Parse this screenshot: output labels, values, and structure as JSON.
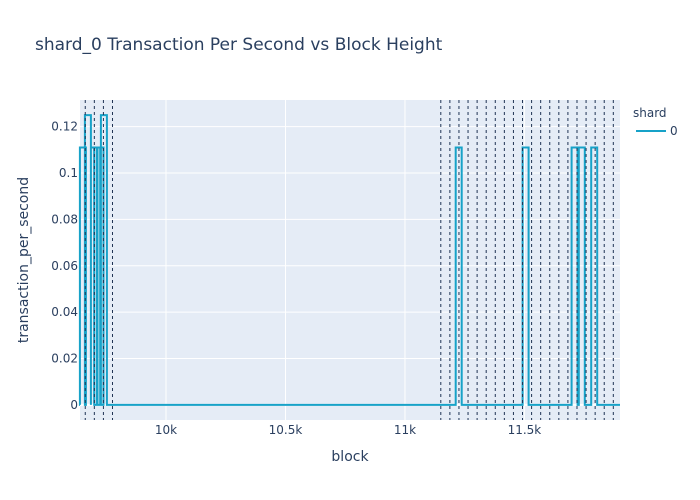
{
  "chart_data": {
    "type": "line",
    "title": "shard_0 Transaction Per Second vs Block Height",
    "xlabel": "block",
    "ylabel": "transaction_per_second",
    "xlim": [
      9640,
      11900
    ],
    "ylim": [
      -0.0065,
      0.1315
    ],
    "x_ticks": [
      {
        "value": 10000,
        "label": "10k"
      },
      {
        "value": 10500,
        "label": "10.5k"
      },
      {
        "value": 11000,
        "label": "11k"
      },
      {
        "value": 11500,
        "label": "11.5k"
      }
    ],
    "y_ticks": [
      {
        "value": 0,
        "label": "0"
      },
      {
        "value": 0.02,
        "label": "0.02"
      },
      {
        "value": 0.04,
        "label": "0.04"
      },
      {
        "value": 0.06,
        "label": "0.06"
      },
      {
        "value": 0.08,
        "label": "0.08"
      },
      {
        "value": 0.1,
        "label": "0.1"
      },
      {
        "value": 0.12,
        "label": "0.12"
      }
    ],
    "grid": true,
    "legend": {
      "title": "shard",
      "position": "top-right"
    },
    "series": [
      {
        "name": "0",
        "color": "#17a2c8",
        "spikes": [
          {
            "x": 9652,
            "y": 0.111
          },
          {
            "x": 9673,
            "y": 0.125
          },
          {
            "x": 9698,
            "y": 0.111
          },
          {
            "x": 9712,
            "y": 0.111
          },
          {
            "x": 9726,
            "y": 0.111
          },
          {
            "x": 9740,
            "y": 0.125
          },
          {
            "x": 11225,
            "y": 0.111
          },
          {
            "x": 11505,
            "y": 0.111
          },
          {
            "x": 11710,
            "y": 0.111
          },
          {
            "x": 11740,
            "y": 0.111
          },
          {
            "x": 11792,
            "y": 0.111
          }
        ]
      }
    ],
    "vlines": [
      9662,
      9700,
      9738,
      9776,
      11150,
      11188,
      11226,
      11264,
      11302,
      11340,
      11378,
      11416,
      11454,
      11492,
      11530,
      11568,
      11606,
      11644,
      11682,
      11720,
      11758,
      11796,
      11834,
      11872
    ],
    "vline_color": "#1f3354"
  }
}
